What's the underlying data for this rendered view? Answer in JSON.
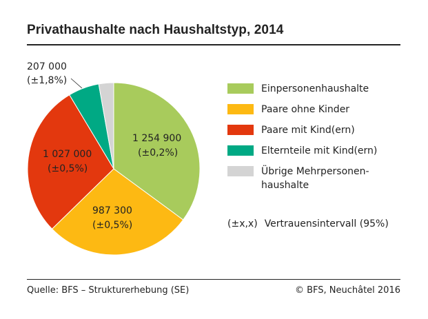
{
  "chart_data": {
    "type": "pie",
    "title": "Privathaushalte nach Haushaltstyp, 2014",
    "slices": [
      {
        "name": "Einpersonenhaushalte",
        "value": 1254900,
        "label": "1 254 900",
        "ci": "(±0,2%)",
        "color": "#a8cb5c"
      },
      {
        "name": "Paare ohne Kinder",
        "value": 987300,
        "label": "987 300",
        "ci": "(±0,5%)",
        "color": "#fdb913"
      },
      {
        "name": "Paare mit Kind(ern)",
        "value": 1027000,
        "label": "1 027 000",
        "ci": "(±0,5%)",
        "color": "#e3380e"
      },
      {
        "name": "Elternteile mit Kind(ern)",
        "value": 207000,
        "label": "207 000",
        "ci": "(±1,8%)",
        "color": "#00a984"
      },
      {
        "name": "Übrige Mehrpersonenhaushalte",
        "value": 100000,
        "label": "",
        "ci": "",
        "color": "#d4d4d4"
      }
    ],
    "legend": [
      "Einpersonenhaushalte",
      "Paare ohne Kinder",
      "Paare mit Kind(ern)",
      "Elternteile mit Kind(ern)",
      "Übrige Mehrpersonen-",
      "haushalte"
    ],
    "legend_placement": "right"
  },
  "note": {
    "symbol": "(±x,x)",
    "text": "Vertrauensintervall (95%)"
  },
  "source": "Quelle: BFS – Strukturerhebung (SE)",
  "copyright": "© BFS, Neuchâtel 2016"
}
